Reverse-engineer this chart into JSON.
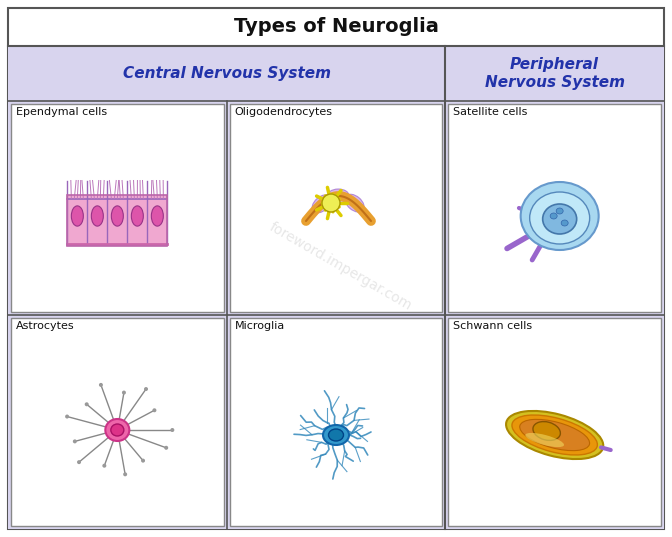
{
  "title": "Types of Neuroglia",
  "cns_label": "Central Nervous System",
  "pns_label": "Peripheral\nNervous System",
  "cell_labels": [
    "Ependymal cells",
    "Oligodendrocytes",
    "Satellite cells",
    "Astrocytes",
    "Microglia",
    "Schwann cells"
  ],
  "bg_color": "#ffffff",
  "cns_bg": "#d8d4ee",
  "pns_bg": "#d8d4ee",
  "cell_bg": "#ffffff",
  "border_color": "#999999",
  "title_fontsize": 14,
  "section_fontsize": 11,
  "label_fontsize": 8,
  "watermark": "foreword.impergar.com"
}
